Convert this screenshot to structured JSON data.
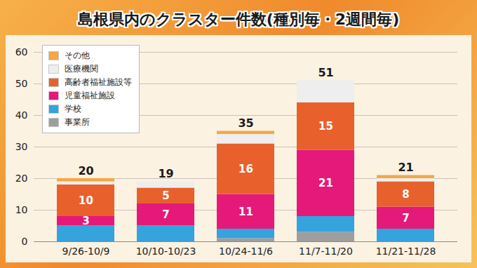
{
  "chart_data": {
    "type": "bar",
    "title": "島根県内のクラスター件数(種別毎・2週間毎)",
    "categories": [
      "9/26-10/9",
      "10/10-10/23",
      "10/24-11/6",
      "11/7-11/20",
      "11/21-11/28"
    ],
    "series": [
      {
        "name": "事業所",
        "color": "#9e9e9e",
        "values": [
          0,
          0,
          1,
          3,
          0
        ]
      },
      {
        "name": "学校",
        "color": "#35a3dc",
        "values": [
          5,
          5,
          3,
          5,
          4
        ]
      },
      {
        "name": "児童福祉施設",
        "color": "#e5197a",
        "values": [
          3,
          7,
          11,
          21,
          7
        ],
        "data_labels": true
      },
      {
        "name": "高齢者福祉施設等",
        "color": "#e8612c",
        "values": [
          10,
          5,
          16,
          15,
          8
        ],
        "data_labels": true
      },
      {
        "name": "医療機関",
        "color": "#eeeeee",
        "values": [
          1,
          2,
          3,
          7,
          1
        ]
      },
      {
        "name": "その他",
        "color": "#f3a845",
        "values": [
          1,
          0,
          1,
          0,
          1
        ]
      }
    ],
    "totals": [
      20,
      19,
      35,
      51,
      21
    ],
    "stacked": true,
    "ylim": [
      0,
      60
    ],
    "yticks": [
      0,
      10,
      20,
      30,
      40,
      50,
      60
    ],
    "grid": true,
    "legend": "top-left"
  }
}
